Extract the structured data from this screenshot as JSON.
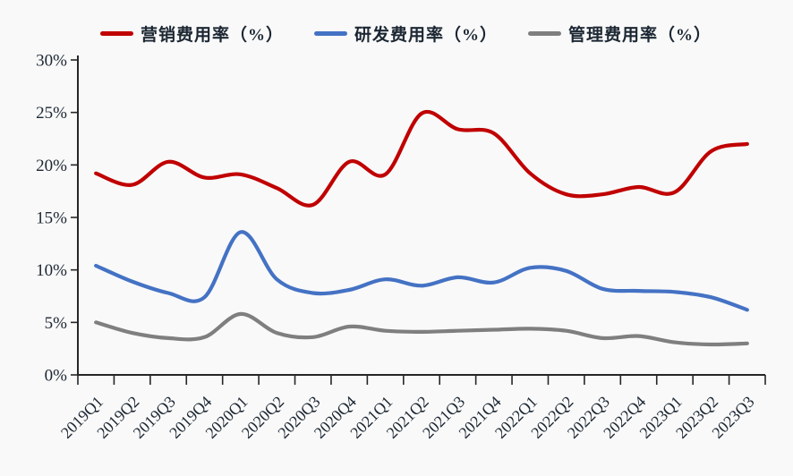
{
  "chart_data": {
    "type": "line",
    "title": "",
    "categories": [
      "2019Q1",
      "2019Q2",
      "2019Q3",
      "2019Q4",
      "2020Q1",
      "2020Q2",
      "2020Q3",
      "2020Q4",
      "2021Q1",
      "2021Q2",
      "2021Q3",
      "2021Q4",
      "2022Q1",
      "2022Q2",
      "2022Q3",
      "2022Q4",
      "2023Q1",
      "2023Q2",
      "2023Q3"
    ],
    "series": [
      {
        "name": "营销费用率（%）",
        "color": "#C00000",
        "values": [
          19.2,
          18.1,
          20.3,
          18.8,
          19.1,
          17.8,
          16.2,
          20.3,
          19.1,
          24.9,
          23.4,
          23.0,
          19.2,
          17.2,
          17.2,
          17.9,
          17.4,
          21.3,
          22.0
        ]
      },
      {
        "name": "研发费用率（%）",
        "color": "#4472C4",
        "values": [
          10.4,
          8.9,
          7.8,
          7.4,
          13.6,
          9.1,
          7.8,
          8.1,
          9.1,
          8.5,
          9.3,
          8.8,
          10.2,
          9.9,
          8.2,
          8.0,
          7.9,
          7.4,
          6.2
        ]
      },
      {
        "name": "管理费用率（%）",
        "color": "#7F7F7F",
        "values": [
          5.0,
          4.0,
          3.5,
          3.6,
          5.8,
          4.0,
          3.6,
          4.6,
          4.2,
          4.1,
          4.2,
          4.3,
          4.4,
          4.2,
          3.5,
          3.7,
          3.1,
          2.9,
          3.0
        ]
      }
    ],
    "xlabel": "",
    "ylabel": "",
    "ylim": [
      0,
      30
    ],
    "ytick_step": 5,
    "yticklabels": [
      "0%",
      "5%",
      "10%",
      "15%",
      "20%",
      "25%",
      "30%"
    ],
    "legend_position": "top",
    "grid": false,
    "smooth": true
  },
  "style": {
    "background": "#f9f9f9",
    "axis_line_color": "#262626",
    "tick_text_color": "#1c2733"
  }
}
